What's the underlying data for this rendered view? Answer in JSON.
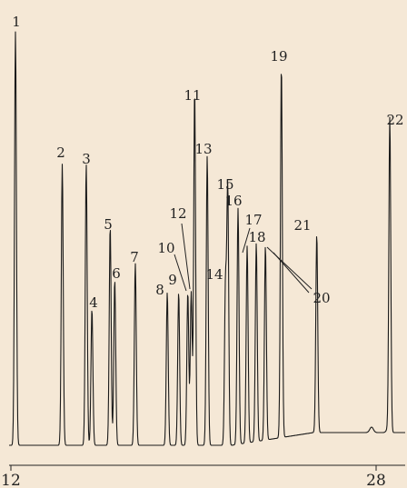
{
  "chart_data": {
    "type": "line",
    "title": "",
    "xlabel": "",
    "ylabel": "",
    "xlim": [
      12,
      28.8
    ],
    "ylim": [
      0,
      1.0
    ],
    "x_ticks": [
      12,
      28
    ],
    "x_tick_labels": [
      "12",
      "28"
    ],
    "grid": false,
    "line_color": "#1a1a1a",
    "series": [
      {
        "values": [
          {
            "label": "1",
            "x": 12.2,
            "y": 1.0
          },
          {
            "label": "2",
            "x": 14.25,
            "y": 0.68
          },
          {
            "label": "3",
            "x": 15.3,
            "y": 0.68
          },
          {
            "label": "4",
            "x": 15.55,
            "y": 0.33
          },
          {
            "label": "5",
            "x": 16.35,
            "y": 0.53
          },
          {
            "label": "6",
            "x": 16.55,
            "y": 0.4
          },
          {
            "label": "7",
            "x": 17.45,
            "y": 0.44
          },
          {
            "label": "8",
            "x": 18.85,
            "y": 0.37
          },
          {
            "label": "9",
            "x": 19.35,
            "y": 0.37
          },
          {
            "label": "10",
            "x": 19.75,
            "y": 0.37
          },
          {
            "label": "11",
            "x": 20.05,
            "y": 0.86
          },
          {
            "label": "12",
            "x": 19.9,
            "y": 0.37
          },
          {
            "label": "13",
            "x": 20.6,
            "y": 0.7
          },
          {
            "label": "14",
            "x": 21.4,
            "y": 0.38
          },
          {
            "label": "15",
            "x": 21.5,
            "y": 0.62
          },
          {
            "label": "16",
            "x": 21.95,
            "y": 0.56
          },
          {
            "label": "17",
            "x": 22.35,
            "y": 0.45
          },
          {
            "label": "18",
            "x": 22.75,
            "y": 0.48
          },
          {
            "label": "19",
            "x": 23.85,
            "y": 0.9
          },
          {
            "label": "20",
            "x": 23.15,
            "y": 0.47
          },
          {
            "label": "21",
            "x": 25.4,
            "y": 0.48
          },
          {
            "label": "22",
            "x": 28.6,
            "y": 0.76
          }
        ]
      }
    ]
  }
}
